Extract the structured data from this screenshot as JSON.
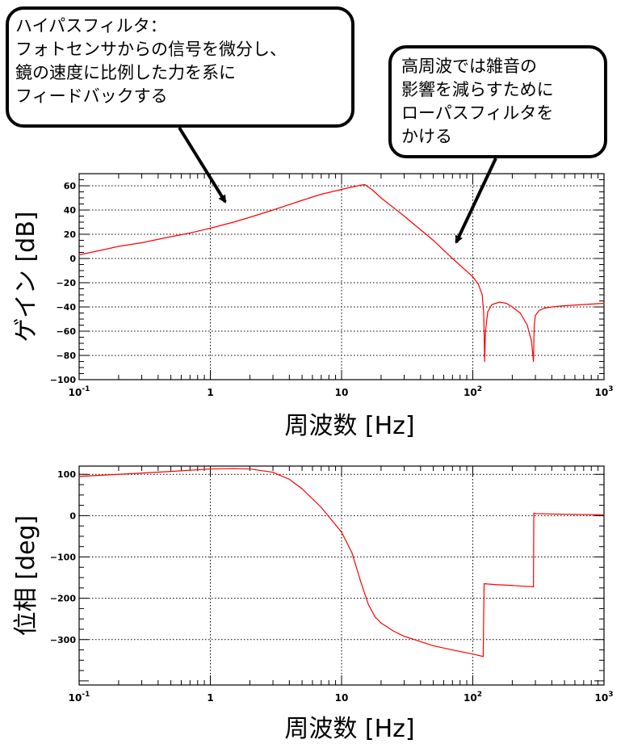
{
  "callouts": {
    "left": {
      "lines": [
        "ハイパスフィルタ：",
        "フォトセンサからの信号を微分し、",
        "鏡の速度に比例した力を系に",
        "フィードバックする"
      ]
    },
    "right": {
      "lines": [
        "高周波では雑音の",
        "影響を減らすために",
        "ローパスフィルタを",
        "かける"
      ]
    }
  },
  "colors": {
    "curve": "#ff0000",
    "frame": "#000000",
    "grid": "#000000",
    "background": "#ffffff"
  },
  "chart_data": [
    {
      "type": "line",
      "title": "",
      "xlabel": "周波数 [Hz]",
      "ylabel": "ゲイン [dB]",
      "xscale": "log",
      "xlim": [
        0.1,
        1000
      ],
      "ylim": [
        -100,
        70
      ],
      "grid": true,
      "xticks": [
        0.1,
        1,
        10,
        100,
        1000
      ],
      "xtick_labels": [
        {
          "base": "10",
          "exp": "-1"
        },
        {
          "base": "1",
          "exp": ""
        },
        {
          "base": "10",
          "exp": ""
        },
        {
          "base": "10",
          "exp": "2"
        },
        {
          "base": "10",
          "exp": "3"
        }
      ],
      "yticks": [
        60,
        40,
        20,
        0,
        -20,
        -40,
        -60,
        -80,
        -100
      ],
      "ytick_labels": [
        "60",
        "40",
        "20",
        "0",
        "−20",
        "−40",
        "−60",
        "−80",
        "−100"
      ],
      "series": [
        {
          "x": [
            0.1,
            0.15,
            0.2,
            0.3,
            0.5,
            0.7,
            1,
            1.5,
            2,
            3,
            5,
            7,
            10,
            12,
            14,
            15,
            17,
            20,
            30,
            50,
            70,
            100,
            110,
            118,
            121,
            122,
            123,
            125,
            130,
            140,
            160,
            180,
            200,
            230,
            260,
            280,
            290,
            292,
            294,
            300,
            320,
            350,
            400,
            500,
            700,
            1000
          ],
          "y": [
            3,
            7,
            10,
            13,
            18,
            21,
            25,
            30,
            34,
            40,
            48,
            53,
            57,
            59,
            60.5,
            61,
            57,
            50,
            35,
            15,
            0,
            -15,
            -21,
            -30,
            -45,
            -60,
            -85,
            -60,
            -44,
            -38,
            -36,
            -37,
            -40,
            -45,
            -55,
            -68,
            -85,
            -68,
            -55,
            -47,
            -43,
            -41,
            -40,
            -39,
            -38,
            -37
          ]
        }
      ]
    },
    {
      "type": "line",
      "title": "",
      "xlabel": "周波数 [Hz]",
      "ylabel": "位相 [deg]",
      "xscale": "log",
      "xlim": [
        0.1,
        1000
      ],
      "ylim": [
        -410,
        120
      ],
      "grid": true,
      "xticks": [
        0.1,
        1,
        10,
        100,
        1000
      ],
      "xtick_labels": [
        {
          "base": "10",
          "exp": "-1"
        },
        {
          "base": "1",
          "exp": ""
        },
        {
          "base": "10",
          "exp": ""
        },
        {
          "base": "10",
          "exp": "2"
        },
        {
          "base": "10",
          "exp": "3"
        }
      ],
      "yticks": [
        100,
        0,
        -100,
        -200,
        -300
      ],
      "ytick_labels": [
        "100",
        "0",
        "−100",
        "−200",
        "−300"
      ],
      "series": [
        {
          "x": [
            0.1,
            0.2,
            0.5,
            1,
            1.5,
            2,
            3,
            4,
            5,
            7,
            10,
            12,
            14,
            16,
            18,
            20,
            25,
            30,
            40,
            50,
            70,
            100,
            120,
            121,
            122,
            125,
            150,
            200,
            250,
            290,
            291,
            292,
            300,
            400,
            600,
            1000
          ],
          "y": [
            95,
            100,
            107,
            113,
            114,
            113,
            105,
            88,
            65,
            20,
            -40,
            -90,
            -160,
            -215,
            -245,
            -260,
            -280,
            -292,
            -305,
            -315,
            -325,
            -335,
            -341,
            -250,
            -165,
            -165,
            -167,
            -169,
            -171,
            -172,
            -80,
            6,
            5,
            4,
            3,
            2
          ]
        }
      ]
    }
  ]
}
